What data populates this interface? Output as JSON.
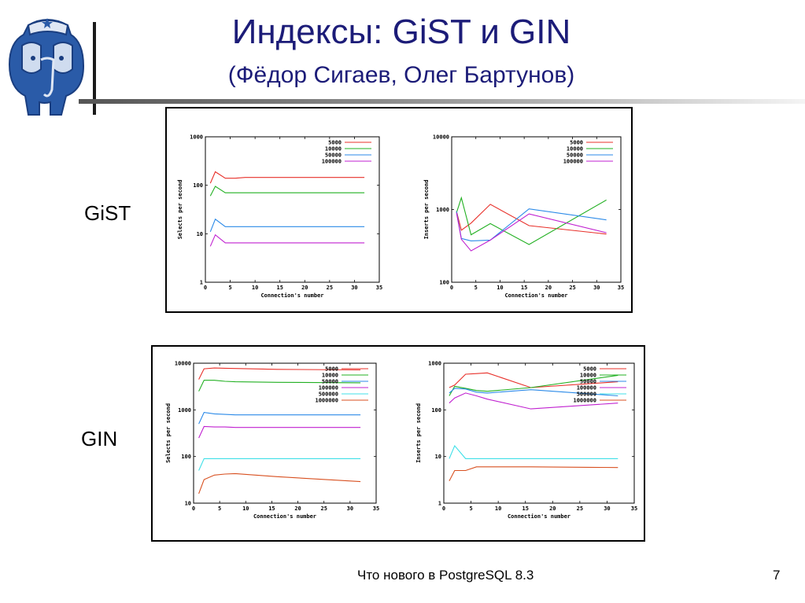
{
  "slide": {
    "title": "Индексы: GiST и GIN",
    "subtitle": "(Фёдор Сигаев, Олег Бартунов)",
    "gist_label": "GiST",
    "gin_label": "GIN",
    "footer": "Что нового в PostgreSQL 8.3",
    "page_number": "7"
  },
  "colors": {
    "title": "#1c1c78",
    "logo_blue": "#2a5ba8",
    "s5000": "#e8302a",
    "s10000": "#22b022",
    "s50000": "#2b8ae8",
    "s100000": "#c020d0",
    "s500000": "#40e0e8",
    "s1000000": "#d85020"
  },
  "chart_data": [
    {
      "type": "line",
      "group": "GiST",
      "xlabel": "Connection's number",
      "ylabel": "Selects per second",
      "yscale": "log",
      "xlim": [
        0,
        35
      ],
      "ylim": [
        1,
        1000
      ],
      "xticks": [
        "0",
        "5",
        "10",
        "15",
        "20",
        "25",
        "30",
        "35"
      ],
      "yticks": [
        [
          "1",
          1
        ],
        [
          "10",
          10
        ],
        [
          "100",
          100
        ],
        [
          "1000",
          1000
        ]
      ],
      "legend": "top-right",
      "series": [
        {
          "name": "5000",
          "color": "#e8302a",
          "x": [
            1,
            2,
            4,
            6,
            8,
            16,
            32
          ],
          "y": [
            110,
            190,
            140,
            140,
            145,
            145,
            145
          ]
        },
        {
          "name": "10000",
          "color": "#22b022",
          "x": [
            1,
            2,
            4,
            6,
            8,
            16,
            32
          ],
          "y": [
            60,
            95,
            70,
            70,
            70,
            70,
            70
          ]
        },
        {
          "name": "50000",
          "color": "#2b8ae8",
          "x": [
            1,
            2,
            4,
            6,
            8,
            16,
            32
          ],
          "y": [
            11,
            20,
            14,
            14,
            14,
            14,
            14
          ]
        },
        {
          "name": "100000",
          "color": "#c020d0",
          "x": [
            1,
            2,
            4,
            6,
            8,
            16,
            32
          ],
          "y": [
            5.5,
            9.5,
            6.5,
            6.5,
            6.5,
            6.5,
            6.5
          ]
        }
      ]
    },
    {
      "type": "line",
      "group": "GiST",
      "xlabel": "Connection's number",
      "ylabel": "Inserts per second",
      "yscale": "log",
      "xlim": [
        0,
        35
      ],
      "ylim": [
        100,
        10000
      ],
      "xticks": [
        "0",
        "5",
        "10",
        "15",
        "20",
        "25",
        "30",
        "35"
      ],
      "yticks": [
        [
          "100",
          100
        ],
        [
          "1000",
          1000
        ],
        [
          "10000",
          10000
        ]
      ],
      "legend": "top-right",
      "series": [
        {
          "name": "5000",
          "color": "#e8302a",
          "x": [
            1,
            2,
            4,
            8,
            16,
            32
          ],
          "y": [
            950,
            520,
            650,
            1180,
            600,
            460
          ]
        },
        {
          "name": "10000",
          "color": "#22b022",
          "x": [
            1,
            2,
            4,
            8,
            16,
            32
          ],
          "y": [
            900,
            1450,
            450,
            640,
            330,
            1350
          ]
        },
        {
          "name": "50000",
          "color": "#2b8ae8",
          "x": [
            1,
            2,
            4,
            8,
            16,
            32
          ],
          "y": [
            950,
            400,
            370,
            380,
            1020,
            720
          ]
        },
        {
          "name": "100000",
          "color": "#c020d0",
          "x": [
            1,
            2,
            4,
            8,
            16,
            32
          ],
          "y": [
            900,
            390,
            270,
            380,
            870,
            480
          ]
        }
      ]
    },
    {
      "type": "line",
      "group": "GIN",
      "xlabel": "Connection's number",
      "ylabel": "Selects per second",
      "yscale": "log",
      "xlim": [
        0,
        35
      ],
      "ylim": [
        10,
        10000
      ],
      "xticks": [
        "0",
        "5",
        "10",
        "15",
        "20",
        "25",
        "30",
        "35"
      ],
      "yticks": [
        [
          "10",
          10
        ],
        [
          "100",
          100
        ],
        [
          "1000",
          1000
        ],
        [
          "10000",
          10000
        ]
      ],
      "legend": "top-right",
      "series": [
        {
          "name": "5000",
          "color": "#e8302a",
          "x": [
            1,
            2,
            4,
            6,
            8,
            16,
            32
          ],
          "y": [
            4500,
            7600,
            7900,
            7800,
            7700,
            7400,
            7200
          ]
        },
        {
          "name": "10000",
          "color": "#22b022",
          "x": [
            1,
            2,
            4,
            6,
            8,
            16,
            32
          ],
          "y": [
            2500,
            4300,
            4300,
            4100,
            4000,
            3900,
            3800
          ]
        },
        {
          "name": "50000",
          "color": "#2b8ae8",
          "x": [
            1,
            2,
            4,
            6,
            8,
            16,
            32
          ],
          "y": [
            500,
            880,
            820,
            800,
            780,
            780,
            780
          ]
        },
        {
          "name": "100000",
          "color": "#c020d0",
          "x": [
            1,
            2,
            4,
            6,
            8,
            16,
            32
          ],
          "y": [
            250,
            440,
            430,
            430,
            420,
            420,
            420
          ]
        },
        {
          "name": "500000",
          "color": "#40e0e8",
          "x": [
            1,
            2,
            4,
            6,
            8,
            16,
            32
          ],
          "y": [
            50,
            90,
            90,
            90,
            90,
            90,
            90
          ]
        },
        {
          "name": "1000000",
          "color": "#d85020",
          "x": [
            1,
            2,
            4,
            6,
            8,
            16,
            32
          ],
          "y": [
            16,
            32,
            40,
            42,
            43,
            37,
            29
          ]
        }
      ]
    },
    {
      "type": "line",
      "group": "GIN",
      "xlabel": "Connection's number",
      "ylabel": "Inserts per second",
      "yscale": "log",
      "xlim": [
        0,
        35
      ],
      "ylim": [
        1,
        1000
      ],
      "xticks": [
        "0",
        "5",
        "10",
        "15",
        "20",
        "25",
        "30",
        "35"
      ],
      "yticks": [
        [
          "1",
          1
        ],
        [
          "10",
          10
        ],
        [
          "100",
          100
        ],
        [
          "1000",
          1000
        ]
      ],
      "legend": "top-right",
      "series": [
        {
          "name": "5000",
          "color": "#e8302a",
          "x": [
            1,
            2,
            4,
            6,
            8,
            16,
            32
          ],
          "y": [
            300,
            340,
            580,
            600,
            620,
            300,
            400
          ]
        },
        {
          "name": "10000",
          "color": "#22b022",
          "x": [
            1,
            2,
            4,
            6,
            8,
            16,
            32
          ],
          "y": [
            200,
            320,
            290,
            260,
            250,
            300,
            550
          ]
        },
        {
          "name": "50000",
          "color": "#2b8ae8",
          "x": [
            1,
            2,
            4,
            6,
            8,
            16,
            32
          ],
          "y": [
            230,
            290,
            280,
            240,
            230,
            270,
            200
          ]
        },
        {
          "name": "100000",
          "color": "#c020d0",
          "x": [
            1,
            2,
            4,
            6,
            8,
            16,
            32
          ],
          "y": [
            140,
            180,
            230,
            200,
            170,
            105,
            140
          ]
        },
        {
          "name": "500000",
          "color": "#40e0e8",
          "x": [
            1,
            2,
            4,
            6,
            8,
            16,
            32
          ],
          "y": [
            9,
            17,
            9,
            9,
            9,
            9,
            9
          ]
        },
        {
          "name": "1000000",
          "color": "#d85020",
          "x": [
            1,
            2,
            4,
            6,
            8,
            16,
            32
          ],
          "y": [
            3,
            5,
            5,
            6,
            6,
            6,
            5.8
          ]
        }
      ]
    }
  ]
}
